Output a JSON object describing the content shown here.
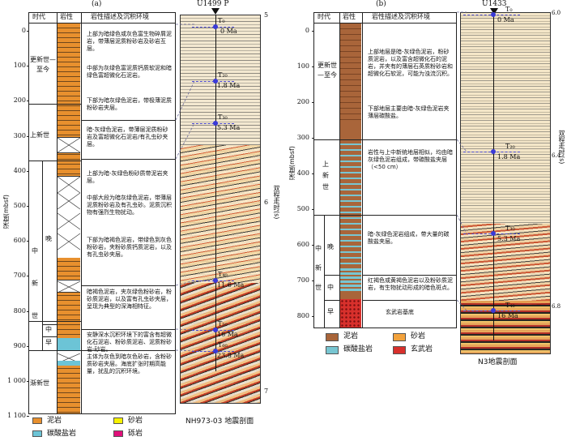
{
  "panel_a": {
    "letter": "(a)",
    "site": "U1499 P",
    "headers": {
      "era": "时代",
      "lith": "岩性",
      "desc": "岩性描述及沉积环境"
    },
    "depth_axis_label": "深度(mbsf)",
    "depth_ticks": [
      "0",
      "100",
      "200",
      "300",
      "400",
      "500",
      "600",
      "700",
      "800",
      "900",
      "1 000",
      "1 100"
    ],
    "eras": {
      "holocene": "更新世—至今",
      "pliocene": "上新世",
      "miocene": "中新世",
      "late": "晚",
      "middle": "中",
      "early": "早",
      "oligocene": "渐新世"
    },
    "descriptions": [
      "上部为暗绿色或灰色富生物碎屑泥岩，带薄层泥质粉砂岩及砂岩互层。",
      "中部为灰绿色富泥质钙质软泥和暗绿色富超微化石泥岩。",
      "下部为暗灰绿色泥岩，带极薄泥质粉砂岩夹层。",
      "暗-灰绿色泥岩，带薄层泥质粉砂岩及富超微化石泥岩/有孔虫砂夹层。",
      "上部为暗-灰绿色粉砂质带泥岩夹层。",
      "中部大段为暗灰绿色泥岩，带薄层泥质粉砂岩及有孔虫砂。泥质沉积物有强烈生物扰动。",
      "下部为暗褐色泥岩，带绿色到灰色粉砂岩，夹粉砂质钙质泥岩，以及有孔虫砂夹层。",
      "暗褐色泥岩，夹灰绿色粉砂岩，粉砂质泥岩，以及富有孔虫砂夹层，呈现为典型的深海相特征。",
      "安静深水沉积环境下的富含有超微化石泥岩、粉砂质泥岩、泥质粉砂岩-砂岩。",
      "主体为灰色到暗灰色砂岩，含粉砂质砂岩夹层。海底扩张时期高能量，扰乱的沉积环境。"
    ],
    "seismic_labels": [
      {
        "name": "T₀",
        "age": "0 Ma"
      },
      {
        "name": "T₂₀",
        "age": "1.8 Ma"
      },
      {
        "name": "T₃₀",
        "age": "5.3 Ma"
      },
      {
        "name": "T₄₀",
        "age": "11.6 Ma"
      },
      {
        "name": "T₅₀",
        "age": "16 Ma"
      },
      {
        "name": "T₆₀",
        "age": "23.8 Ma"
      }
    ],
    "twt_ticks": [
      "5",
      "6",
      "7"
    ],
    "twt_label": "双程走时(s)",
    "profile_caption": "NH973-03 地震剖面",
    "legend": [
      {
        "label": "泥岩",
        "color": "#e8902e"
      },
      {
        "label": "砂岩",
        "color": "#f7f200"
      },
      {
        "label": "碳酸盐岩",
        "color": "#6cc4d6"
      },
      {
        "label": "砾岩",
        "color": "#e0107a"
      }
    ]
  },
  "panel_b": {
    "letter": "(b)",
    "site": "U1433",
    "headers": {
      "era": "时代",
      "lith": "岩性",
      "desc": "岩性描述及沉积环境"
    },
    "depth_axis_label": "深度(mbsf)",
    "depth_ticks": [
      "0",
      "100",
      "200",
      "300",
      "400",
      "500",
      "600",
      "700",
      "800"
    ],
    "eras": {
      "holocene": "更新世—至今",
      "pliocene": "上新世",
      "miocene": "中新世",
      "late": "晚",
      "middle": "中",
      "early": "早"
    },
    "descriptions": [
      "上部地层是暗-灰绿色泥岩，粉砂质泥岩，以及富含超微化石的泥岩，并夹有的薄层石英质粉砂岩和超微化石软泥，可能为浊流沉积。",
      "下部地层主要由暗-灰绿色泥岩夹薄层碳酸盐。",
      "岩性与上中新统地层相似，均由暗灰绿色泥岩组成，带碳酸盐夹层（<50 cm）",
      "暗-灰绿色泥岩组成，带大量的碳酸盐夹层。",
      "红褐色或黄褐色泥岩以及粉砂质泥岩，有生物扰动形成的暗色斑点。",
      "玄武岩基底"
    ],
    "seismic_labels": [
      {
        "name": "T₀",
        "age": "0 Ma"
      },
      {
        "name": "T₂₀",
        "age": "1.8 Ma"
      },
      {
        "name": "T₃₀",
        "age": "5.3 Ma"
      },
      {
        "name": "T₄₀",
        "age": "16 Ma"
      }
    ],
    "twt_ticks": [
      "6.0",
      "6.4",
      "6.8"
    ],
    "twt_label": "双程走时(s)",
    "profile_caption": "N3地震剖面",
    "legend": [
      {
        "label": "泥岩",
        "color": "#a9653a"
      },
      {
        "label": "砂岩",
        "color": "#f2a23c"
      },
      {
        "label": "碳酸盐岩",
        "color": "#78c6d2"
      },
      {
        "label": "玄武岩",
        "color": "#d8302c"
      }
    ]
  }
}
